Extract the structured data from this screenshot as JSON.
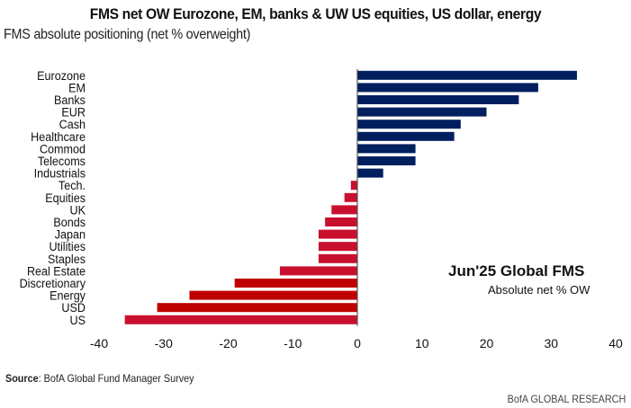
{
  "chart_data": {
    "type": "bar",
    "orientation": "horizontal",
    "title": "FMS net OW Eurozone, EM, banks & UW US equities, US dollar, energy",
    "subtitle": "FMS absolute positioning (net % overweight)",
    "xlabel": "",
    "ylabel": "",
    "xlim": [
      -40,
      40
    ],
    "xticks": [
      -40,
      -30,
      -20,
      -10,
      0,
      10,
      20,
      30,
      40
    ],
    "grid": false,
    "categories": [
      "Eurozone",
      "EM",
      "Banks",
      "EUR",
      "Cash",
      "Healthcare",
      "Commod",
      "Telecoms",
      "Industrials",
      "Tech.",
      "Equities",
      "UK",
      "Bonds",
      "Japan",
      "Utilities",
      "Staples",
      "Real Estate",
      "Discretionary",
      "Energy",
      "USD",
      "US"
    ],
    "values": [
      34,
      28,
      25,
      20,
      16,
      15,
      9,
      9,
      4,
      -1,
      -2,
      -4,
      -5,
      -6,
      -6,
      -6,
      -12,
      -19,
      -26,
      -31,
      -36
    ],
    "colors": {
      "positive": "#001f5f",
      "negative": "#c8102e",
      "highlight_negative": "#c00000",
      "axis": "#555555"
    },
    "highlighted_categories": [
      "Discretionary",
      "Energy",
      "USD"
    ],
    "annotation": {
      "title": "Jun'25 Global FMS",
      "subtitle": "Absolute net % OW"
    }
  },
  "footer": {
    "source_label": "Source",
    "source_text": ": BofA Global Fund Manager Survey",
    "brand": "BofA GLOBAL RESEARCH"
  }
}
